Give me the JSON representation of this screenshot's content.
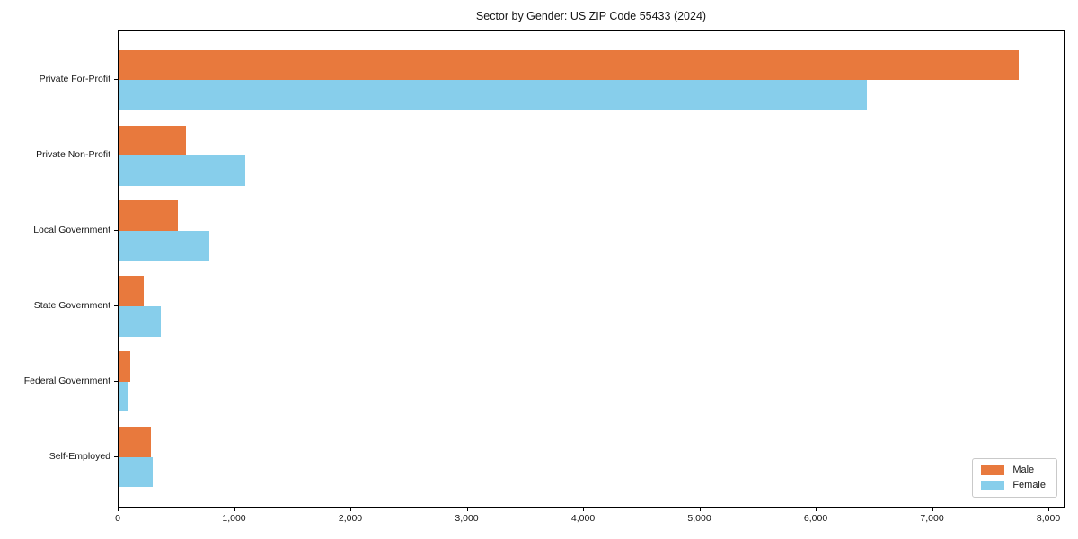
{
  "title": "Sector by Gender: US ZIP Code 55433 (2024)",
  "chart_data": {
    "type": "bar",
    "orientation": "horizontal",
    "title": "Sector by Gender: US ZIP Code 55433 (2024)",
    "categories": [
      "Private For-Profit",
      "Private Non-Profit",
      "Local Government",
      "State Government",
      "Federal Government",
      "Self-Employed"
    ],
    "series": [
      {
        "name": "Male",
        "color": "#E8793D",
        "values": [
          7740,
          580,
          510,
          220,
          100,
          280
        ]
      },
      {
        "name": "Female",
        "color": "#87CEEB",
        "values": [
          6430,
          1090,
          780,
          360,
          80,
          290
        ]
      }
    ],
    "xlabel": "",
    "ylabel": "",
    "xlim": [
      0,
      8123
    ],
    "xticks": [
      0,
      1000,
      2000,
      3000,
      4000,
      5000,
      6000,
      7000,
      8000
    ],
    "xtick_labels": [
      "0",
      "1,000",
      "2,000",
      "3,000",
      "4,000",
      "5,000",
      "6,000",
      "7,000",
      "8,000"
    ],
    "grid": false,
    "background": "#ffffff",
    "legend": {
      "position": "lower right",
      "entries": [
        "Male",
        "Female"
      ]
    }
  }
}
